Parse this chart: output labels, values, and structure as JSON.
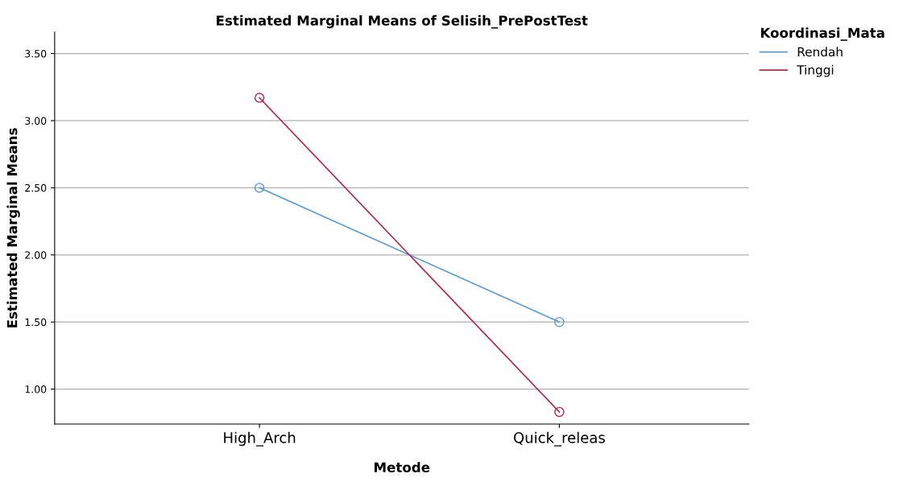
{
  "chart_data": {
    "type": "line",
    "title": "Estimated Marginal Means of Selisih_PrePostTest",
    "xlabel": "Metode",
    "ylabel": "Estimated Marginal Means",
    "legend_title": "Koordinasi_Mata",
    "categories": [
      "High_Arch",
      "Quick_releas"
    ],
    "series": [
      {
        "name": "Rendah",
        "color": "#5b9bd5",
        "values": [
          2.5,
          1.5
        ]
      },
      {
        "name": "Tinggi",
        "color": "#b0294a",
        "values": [
          3.17,
          0.83
        ]
      }
    ],
    "ylim": [
      0.74,
      3.66
    ],
    "yticks": [
      {
        "value": 1.0,
        "label": "1.00"
      },
      {
        "value": 1.5,
        "label": "1.50"
      },
      {
        "value": 2.0,
        "label": "2.00"
      },
      {
        "value": 2.5,
        "label": "2.50"
      },
      {
        "value": 3.0,
        "label": "3.00"
      },
      {
        "value": 3.5,
        "label": "3.50"
      }
    ],
    "grid": "y",
    "legend": "top right",
    "marker": "circle",
    "line_style": "solid"
  }
}
